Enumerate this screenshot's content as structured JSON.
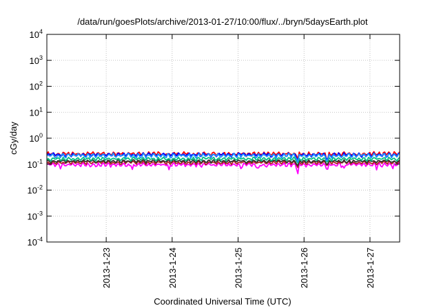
{
  "chart_data": {
    "type": "line",
    "title": "/data/run/goesPlots/archive/2013-01-27/10:00/flux/../bryn/5daysEarth.plot",
    "xlabel": "Coordinated Universal Time (UTC)",
    "ylabel": "cGy/day",
    "yscale": "log",
    "ylim": [
      0.0001,
      10000
    ],
    "y_ticks": [
      {
        "value": 0.0001,
        "base": "10",
        "exp": "-4"
      },
      {
        "value": 0.001,
        "base": "10",
        "exp": "-3"
      },
      {
        "value": 0.01,
        "base": "10",
        "exp": "-2"
      },
      {
        "value": 0.1,
        "base": "10",
        "exp": "-1"
      },
      {
        "value": 1,
        "base": "10",
        "exp": "0"
      },
      {
        "value": 10,
        "base": "10",
        "exp": "1"
      },
      {
        "value": 100,
        "base": "10",
        "exp": "2"
      },
      {
        "value": 1000,
        "base": "10",
        "exp": "3"
      },
      {
        "value": 10000,
        "base": "10",
        "exp": "4"
      }
    ],
    "xlim_days": [
      22.1,
      27.45
    ],
    "x_ticks": [
      {
        "label": "2013-1-23",
        "day": 23
      },
      {
        "label": "2013-1-24",
        "day": 24
      },
      {
        "label": "2013-1-25",
        "day": 25
      },
      {
        "label": "2013-1-26",
        "day": 26
      },
      {
        "label": "2013-1-27",
        "day": 27
      }
    ],
    "grid": true,
    "series": [
      {
        "color": "#ff00ff",
        "base": 0.095,
        "amp": 0.12,
        "dips": [
          [
            22.3,
            0.06
          ],
          [
            22.85,
            0.07
          ],
          [
            23.4,
            0.06
          ],
          [
            23.95,
            0.06
          ],
          [
            25.05,
            0.06
          ],
          [
            25.3,
            0.04
          ],
          [
            25.9,
            0.022
          ],
          [
            26.35,
            0.03
          ],
          [
            26.6,
            0.06
          ],
          [
            27.1,
            0.06
          ],
          [
            27.35,
            0.065
          ]
        ]
      },
      {
        "color": "#b22222",
        "base": 0.115,
        "amp": 0.1,
        "dips": [
          [
            25.9,
            0.06
          ],
          [
            26.35,
            0.07
          ]
        ]
      },
      {
        "color": "#333333",
        "base": 0.13,
        "amp": 0.09,
        "dips": [
          [
            25.9,
            0.07
          ],
          [
            26.35,
            0.08
          ]
        ]
      },
      {
        "color": "#00c080",
        "base": 0.16,
        "amp": 0.1,
        "dips": [
          [
            25.9,
            0.09
          ],
          [
            26.35,
            0.09
          ]
        ]
      },
      {
        "color": "#ff0000",
        "base": 0.25,
        "amp": 0.12,
        "dips": [
          [
            25.9,
            0.12
          ],
          [
            26.35,
            0.1
          ]
        ]
      },
      {
        "color": "#0000ff",
        "base": 0.23,
        "amp": 0.12,
        "dips": [
          [
            25.9,
            0.1
          ],
          [
            26.35,
            0.09
          ]
        ]
      },
      {
        "color": "#1e90ff",
        "base": 0.215,
        "amp": 0.13,
        "dips": [
          [
            25.9,
            0.09
          ],
          [
            26.35,
            0.09
          ]
        ]
      }
    ]
  }
}
